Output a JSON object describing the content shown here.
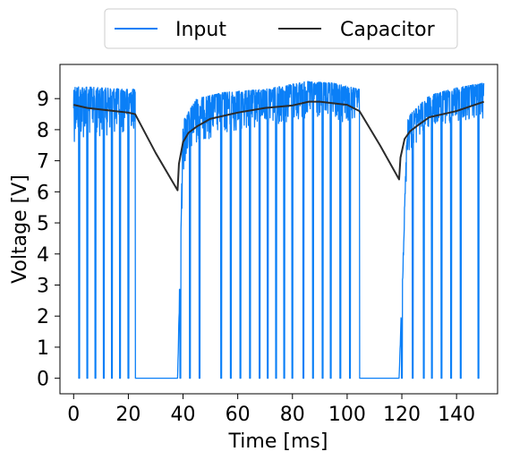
{
  "chart_data": {
    "type": "line",
    "xlabel": "Time [ms]",
    "ylabel": "Voltage [V]",
    "xlim": [
      -5,
      155
    ],
    "ylim": [
      -0.5,
      10.1
    ],
    "xticks": [
      0,
      20,
      40,
      60,
      80,
      100,
      120,
      140
    ],
    "yticks": [
      0,
      1,
      2,
      3,
      4,
      5,
      6,
      7,
      8,
      9
    ],
    "grid": false,
    "legend_placement": "top-center-outside",
    "series": [
      {
        "name": "Input",
        "color": "#0a7ff7",
        "envelope_x": [
          0,
          10,
          20,
          22.5,
          38,
          40,
          45,
          55,
          70,
          85,
          95,
          104.5,
          119,
          122,
          130,
          140,
          150
        ],
        "envelope_high": [
          9.4,
          9.35,
          9.3,
          9.3,
          0,
          8.3,
          9.0,
          9.2,
          9.3,
          9.55,
          9.5,
          9.3,
          0,
          8.4,
          9.1,
          9.35,
          9.5
        ],
        "envelope_low": [
          7.6,
          7.8,
          7.9,
          8.0,
          0,
          6.5,
          7.6,
          7.8,
          8.1,
          8.3,
          8.2,
          8.2,
          0,
          7.2,
          8.0,
          8.2,
          8.3
        ],
        "off_intervals": [
          [
            22.5,
            38
          ],
          [
            104.5,
            119
          ]
        ],
        "dropout_times": [
          2,
          5,
          8,
          11,
          14,
          17,
          20,
          39,
          42.5,
          46,
          54,
          57.5,
          61,
          64.5,
          68,
          71,
          74,
          77,
          80,
          84,
          87.5,
          91,
          94,
          97.5,
          101,
          120,
          124,
          128,
          131,
          134.5,
          138,
          141.5,
          148
        ]
      },
      {
        "name": "Capacitor",
        "color": "#2b2b2b",
        "x": [
          0,
          5,
          10,
          15,
          20,
          22.5,
          30,
          38,
          38.5,
          40,
          42,
          45,
          50,
          60,
          70,
          80,
          86,
          90,
          100,
          104.5,
          112,
          119,
          119.5,
          121,
          123,
          126,
          130,
          140,
          150
        ],
        "y": [
          8.8,
          8.7,
          8.65,
          8.6,
          8.55,
          8.5,
          7.25,
          6.05,
          6.9,
          7.6,
          7.9,
          8.1,
          8.35,
          8.55,
          8.7,
          8.78,
          8.9,
          8.9,
          8.8,
          8.6,
          7.5,
          6.4,
          7.1,
          7.7,
          7.95,
          8.15,
          8.4,
          8.6,
          8.9
        ]
      }
    ]
  }
}
